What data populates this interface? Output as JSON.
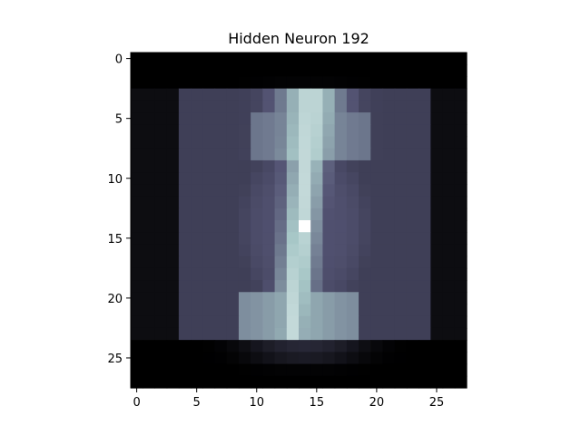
{
  "chart_data": {
    "type": "heatmap",
    "title": "Hidden Neuron 192",
    "xlabel": "",
    "ylabel": "",
    "rows": 28,
    "cols": 28,
    "colormap": "bone",
    "colormap_stops": [
      "#000000",
      "#545474",
      "#a7c7c7",
      "#ffffff"
    ],
    "xlim": [
      -0.5,
      27.5
    ],
    "ylim": [
      27.5,
      -0.5
    ],
    "x_ticks": [
      0,
      5,
      10,
      15,
      20,
      25
    ],
    "y_ticks": [
      0,
      5,
      10,
      15,
      20,
      25
    ],
    "x_tick_labels": [
      "0",
      "5",
      "10",
      "15",
      "20",
      "25"
    ],
    "y_tick_labels": [
      "0",
      "5",
      "10",
      "15",
      "20",
      "25"
    ],
    "grid": false,
    "structure": {
      "outer_blob_center": [
        14,
        14
      ],
      "outer_blob_radius": [
        7.5,
        10.5
      ],
      "stroke_rows": [
        4,
        23
      ],
      "stroke_column_top": 14.5,
      "stroke_column_bottom": 13.0,
      "bottom_cap_rows": [
        20,
        23
      ],
      "bottom_cap_columns": [
        9,
        18
      ],
      "peak": [
        14,
        14
      ]
    }
  }
}
